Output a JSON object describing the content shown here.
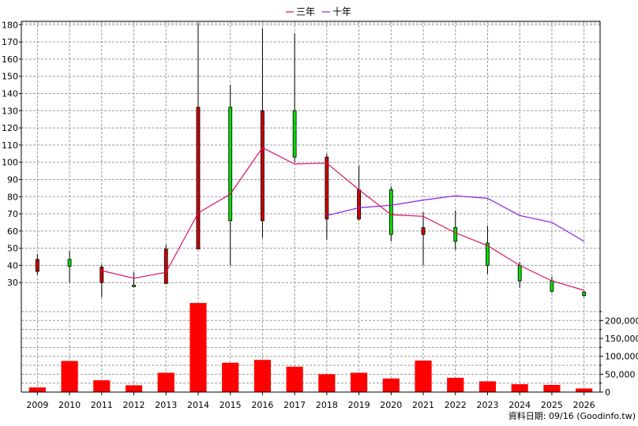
{
  "chart_data": {
    "type": "candlestick+line+bar",
    "legend": [
      {
        "name": "三年",
        "color": "#dd1166"
      },
      {
        "name": "十年",
        "color": "#8a1ce6"
      }
    ],
    "years": [
      "2009",
      "2010",
      "2011",
      "2012",
      "2013",
      "2014",
      "2015",
      "2016",
      "2017",
      "2018",
      "2019",
      "2020",
      "2021",
      "2022",
      "2023",
      "2024",
      "2025",
      "2026"
    ],
    "price_axis": {
      "ylim": [
        20,
        182
      ],
      "ticks": [
        30,
        40,
        50,
        60,
        70,
        80,
        90,
        100,
        110,
        120,
        130,
        140,
        150,
        160,
        170,
        180
      ]
    },
    "volume_axis": {
      "ylim": [
        0,
        258000
      ],
      "ticks": [
        0,
        50000,
        100000,
        150000,
        200000
      ],
      "tick_labels": [
        "0",
        "50,000",
        "100,000",
        "150,000",
        "200,000"
      ]
    },
    "candles": [
      {
        "year": "2009",
        "open": 43.5,
        "close": 36.5,
        "high": 46.5,
        "low": 34.5
      },
      {
        "year": "2010",
        "open": 39.5,
        "close": 43.5,
        "high": 48.5,
        "low": 30
      },
      {
        "year": "2011",
        "open": 39,
        "close": 30,
        "high": 40.5,
        "low": 21.5
      },
      {
        "year": "2012",
        "open": 28.5,
        "close": 28.5,
        "high": 36,
        "low": 27.5
      },
      {
        "year": "2013",
        "open": 49.5,
        "close": 29.5,
        "high": 52,
        "low": 29
      },
      {
        "year": "2014",
        "open": 132,
        "close": 49.5,
        "high": 181,
        "low": 49.5
      },
      {
        "year": "2015",
        "open": 66,
        "close": 132,
        "high": 145,
        "low": 40
      },
      {
        "year": "2016",
        "open": 130,
        "close": 66,
        "high": 178,
        "low": 56
      },
      {
        "year": "2017",
        "open": 103,
        "close": 130,
        "high": 175,
        "low": 100
      },
      {
        "year": "2018",
        "open": 103,
        "close": 67,
        "high": 105,
        "low": 55
      },
      {
        "year": "2019",
        "open": 84,
        "close": 67,
        "high": 98,
        "low": 66
      },
      {
        "year": "2020",
        "open": 58,
        "close": 84,
        "high": 86,
        "low": 54
      },
      {
        "year": "2021",
        "open": 62,
        "close": 58,
        "high": 71,
        "low": 40
      },
      {
        "year": "2022",
        "open": 54,
        "close": 62,
        "high": 72,
        "low": 49
      },
      {
        "year": "2023",
        "open": 40,
        "close": 53,
        "high": 63,
        "low": 35
      },
      {
        "year": "2024",
        "open": 31,
        "close": 40,
        "high": 42,
        "low": 27
      },
      {
        "year": "2025",
        "open": 25,
        "close": 31,
        "high": 33.5,
        "low": 24
      },
      {
        "year": "2026",
        "open": 22.5,
        "close": 24.5,
        "high": 25,
        "low": 21.5
      }
    ],
    "series": [
      {
        "name": "三年",
        "values": [
          null,
          null,
          37,
          32.5,
          36,
          70.5,
          81.5,
          108.5,
          99,
          99.5,
          84,
          69.5,
          68.5,
          59,
          51.5,
          40,
          31,
          25.5
        ]
      },
      {
        "name": "十年",
        "values": [
          null,
          null,
          null,
          null,
          null,
          null,
          null,
          null,
          null,
          69,
          73.5,
          75,
          78,
          80.5,
          79,
          69,
          65,
          54
        ]
      }
    ],
    "volume": [
      13000,
      87000,
      33000,
      19000,
      54000,
      249000,
      82000,
      90000,
      71000,
      50000,
      54000,
      38000,
      88000,
      40000,
      30000,
      22000,
      20000,
      10000
    ],
    "colors": {
      "up": "#00dd00",
      "down": "#cc0000",
      "volume": "#ff0000",
      "grid": "#9a9a9a"
    },
    "footer": "資料日期: 09/16  (Goodinfo.tw)"
  }
}
